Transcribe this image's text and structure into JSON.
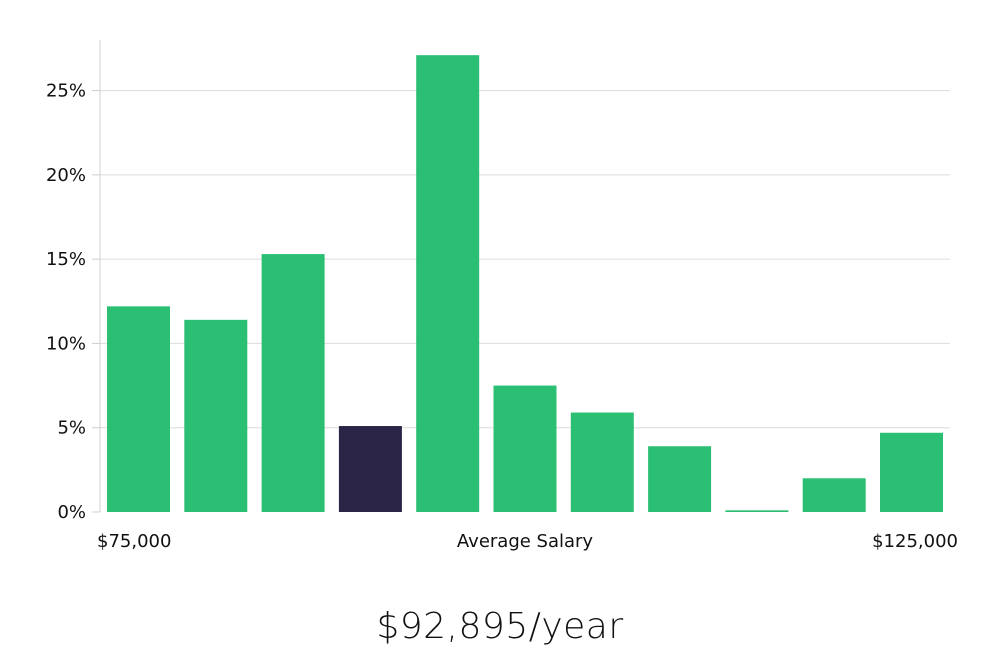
{
  "chart_data": {
    "type": "bar",
    "categories": [
      "1",
      "2",
      "3",
      "4",
      "5",
      "6",
      "7",
      "8",
      "9",
      "10",
      "11"
    ],
    "values": [
      12.2,
      11.4,
      15.3,
      5.1,
      27.1,
      7.5,
      5.9,
      3.9,
      0.1,
      2.0,
      4.7
    ],
    "highlight_index": 3,
    "ylim": [
      0,
      28
    ],
    "yticks": [
      0,
      5,
      10,
      15,
      20,
      25
    ],
    "ytick_suffix": "%",
    "grid": true,
    "x_labels": {
      "left": "$75,000",
      "center": "Average Salary",
      "right": "$125,000"
    },
    "colors": {
      "bar": "#2bbf74",
      "highlight": "#2a2546"
    }
  },
  "summary": {
    "salary": "$92,895/year"
  }
}
